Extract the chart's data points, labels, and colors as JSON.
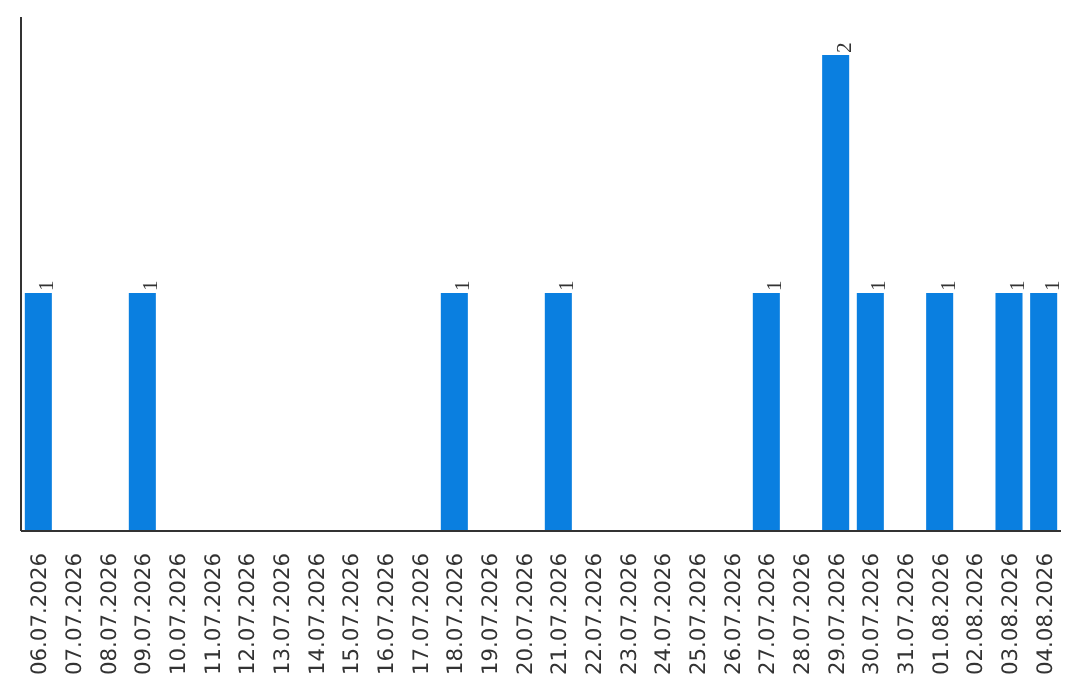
{
  "chart_data": {
    "type": "bar",
    "categories": [
      "06.07.2026",
      "07.07.2026",
      "08.07.2026",
      "09.07.2026",
      "10.07.2026",
      "11.07.2026",
      "12.07.2026",
      "13.07.2026",
      "14.07.2026",
      "15.07.2026",
      "16.07.2026",
      "17.07.2026",
      "18.07.2026",
      "19.07.2026",
      "20.07.2026",
      "21.07.2026",
      "22.07.2026",
      "23.07.2026",
      "24.07.2026",
      "25.07.2026",
      "26.07.2026",
      "27.07.2026",
      "28.07.2026",
      "29.07.2026",
      "30.07.2026",
      "31.07.2026",
      "01.08.2026",
      "02.08.2026",
      "03.08.2026",
      "04.08.2026"
    ],
    "values": [
      1,
      0,
      0,
      1,
      0,
      0,
      0,
      0,
      0,
      0,
      0,
      0,
      1,
      0,
      0,
      1,
      0,
      0,
      0,
      0,
      0,
      1,
      0,
      2,
      1,
      0,
      1,
      0,
      1,
      1
    ],
    "value_labels": [
      "1",
      null,
      null,
      "1",
      null,
      null,
      null,
      null,
      null,
      null,
      null,
      null,
      "1",
      null,
      null,
      "1",
      null,
      null,
      null,
      null,
      null,
      "1",
      null,
      "2",
      "1",
      null,
      "1",
      null,
      "1",
      "1"
    ],
    "color": "#0a7fe0",
    "tick_labels": "x"
  }
}
